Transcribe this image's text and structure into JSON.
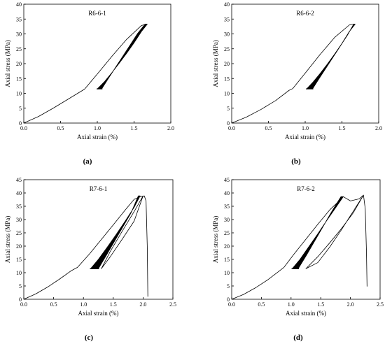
{
  "chart_data": [
    {
      "type": "line",
      "panel_label": "(a)",
      "title": "R6-6-1",
      "xlabel": "Axial strain (%)",
      "ylabel": "Axial stress (MPa)",
      "xlim": [
        0,
        2.0
      ],
      "ylim": [
        0,
        40
      ],
      "xticks": [
        "0.0",
        "0.5",
        "1.0",
        "1.5",
        "2.0"
      ],
      "yticks": [
        "0",
        "5",
        "10",
        "15",
        "20",
        "25",
        "30",
        "35",
        "40"
      ],
      "grid": false,
      "series": [
        {
          "kind": "loading_curve",
          "x": [
            0,
            0.2,
            0.4,
            0.6,
            0.8,
            0.83,
            1.0,
            1.2,
            1.4,
            1.6,
            1.66
          ],
          "y": [
            0,
            2.2,
            5.0,
            8.0,
            11.0,
            11.5,
            16.5,
            22.5,
            28.2,
            32.8,
            33.3
          ]
        },
        {
          "kind": "cyclic_band",
          "x_lower": [
            1.0,
            1.1,
            1.2,
            1.3,
            1.4,
            1.5,
            1.6,
            1.68
          ],
          "y_lower": [
            11.5,
            14.0,
            17.0,
            20.2,
            23.5,
            27.0,
            30.8,
            33.3
          ],
          "x_upper": [
            1.06,
            1.15,
            1.25,
            1.35,
            1.45,
            1.55,
            1.65
          ],
          "y_upper": [
            11.5,
            15.0,
            18.8,
            22.6,
            26.4,
            30.2,
            33.3
          ]
        }
      ]
    },
    {
      "type": "line",
      "panel_label": "(b)",
      "title": "R6-6-2",
      "xlabel": "Axial strain (%)",
      "ylabel": "Axial stress (MPa)",
      "xlim": [
        0,
        2.0
      ],
      "ylim": [
        0,
        40
      ],
      "xticks": [
        "0.0",
        "0.5",
        "1.0",
        "1.5",
        "2.0"
      ],
      "yticks": [
        "0",
        "5",
        "10",
        "15",
        "20",
        "25",
        "30",
        "35",
        "40"
      ],
      "grid": false,
      "series": [
        {
          "kind": "loading_curve",
          "x": [
            0,
            0.2,
            0.4,
            0.6,
            0.78,
            0.83,
            1.0,
            1.2,
            1.4,
            1.6,
            1.66
          ],
          "y": [
            0,
            2.0,
            4.6,
            7.6,
            11.0,
            11.6,
            16.8,
            23.0,
            28.8,
            33.0,
            33.3
          ]
        },
        {
          "kind": "cyclic_band",
          "x_lower": [
            1.02,
            1.1,
            1.2,
            1.3,
            1.4,
            1.5,
            1.6,
            1.68
          ],
          "y_lower": [
            11.5,
            13.6,
            16.6,
            19.8,
            23.2,
            26.8,
            30.8,
            33.3
          ],
          "x_upper": [
            1.1,
            1.18,
            1.28,
            1.38,
            1.48,
            1.58,
            1.66
          ],
          "y_upper": [
            11.5,
            14.6,
            18.4,
            22.2,
            26.0,
            29.8,
            33.3
          ]
        }
      ]
    },
    {
      "type": "line",
      "panel_label": "(c)",
      "title": "R7-6-1",
      "xlabel": "Axial strain (%)",
      "ylabel": "Axial stress (MPa)",
      "xlim": [
        0,
        2.5
      ],
      "ylim": [
        0,
        45
      ],
      "xticks": [
        "0.0",
        "0.5",
        "1.0",
        "1.5",
        "2.0",
        "2.5"
      ],
      "yticks": [
        "0",
        "5",
        "10",
        "15",
        "20",
        "25",
        "30",
        "35",
        "40",
        "45"
      ],
      "grid": false,
      "series": [
        {
          "kind": "loading_curve",
          "x": [
            0,
            0.2,
            0.4,
            0.6,
            0.8,
            0.9,
            1.1,
            1.3,
            1.5,
            1.7,
            1.85,
            1.95,
            2.02,
            2.05,
            2.07,
            2.08
          ],
          "y": [
            0,
            2.0,
            4.6,
            7.6,
            10.8,
            12.0,
            17.0,
            22.5,
            28.0,
            33.6,
            37.6,
            38.6,
            38.9,
            37.0,
            20.0,
            1.0
          ]
        },
        {
          "kind": "cyclic_band",
          "x_lower": [
            1.12,
            1.25,
            1.4,
            1.55,
            1.7,
            1.85,
            1.95
          ],
          "y_lower": [
            11.5,
            15.0,
            19.6,
            24.4,
            29.4,
            34.6,
            38.9
          ],
          "x_upper": [
            1.25,
            1.38,
            1.52,
            1.66,
            1.8,
            1.92
          ],
          "y_upper": [
            11.5,
            16.4,
            21.8,
            27.2,
            32.6,
            38.9
          ]
        },
        {
          "kind": "unload_reload",
          "x": [
            2.0,
            1.85,
            1.65,
            1.45,
            1.3,
            1.45,
            1.65,
            1.85,
            2.0
          ],
          "y": [
            38.9,
            33.0,
            25.6,
            18.0,
            11.5,
            16.0,
            22.6,
            29.4,
            38.9
          ]
        }
      ]
    },
    {
      "type": "line",
      "panel_label": "(d)",
      "title": "R7-6-2",
      "xlabel": "Axial strain  (%)",
      "ylabel": "Axial stress (MPa)",
      "xlim": [
        0,
        2.5
      ],
      "ylim": [
        0,
        45
      ],
      "xticks": [
        "0.0",
        "0.5",
        "1.0",
        "1.5",
        "2.0",
        "2.5"
      ],
      "yticks": [
        "0",
        "5",
        "10",
        "15",
        "20",
        "25",
        "30",
        "35",
        "40",
        "45"
      ],
      "grid": false,
      "series": [
        {
          "kind": "loading_curve",
          "x": [
            0,
            0.2,
            0.4,
            0.6,
            0.8,
            0.88,
            1.05,
            1.25,
            1.45,
            1.65,
            1.8,
            1.88,
            2.0,
            2.15,
            2.22,
            2.25,
            2.27,
            2.28
          ],
          "y": [
            0,
            1.8,
            4.3,
            7.2,
            10.6,
            12.0,
            17.0,
            22.6,
            28.2,
            33.6,
            36.8,
            38.6,
            37.0,
            37.8,
            39.2,
            34.0,
            18.0,
            4.8
          ]
        },
        {
          "kind": "cyclic_band",
          "x_lower": [
            1.02,
            1.15,
            1.3,
            1.45,
            1.6,
            1.75,
            1.88
          ],
          "y_lower": [
            11.5,
            15.0,
            19.8,
            24.6,
            29.6,
            34.4,
            38.6
          ],
          "x_upper": [
            1.12,
            1.26,
            1.4,
            1.54,
            1.68,
            1.84
          ],
          "y_upper": [
            11.5,
            16.6,
            22.0,
            27.4,
            32.8,
            38.6
          ]
        },
        {
          "kind": "unload_reload",
          "x": [
            2.22,
            2.05,
            1.85,
            1.65,
            1.45,
            1.25,
            1.45,
            1.65,
            1.85,
            2.05,
            2.22
          ],
          "y": [
            39.2,
            33.2,
            26.2,
            19.6,
            13.8,
            11.5,
            16.0,
            21.2,
            26.6,
            32.6,
            39.2
          ]
        }
      ]
    }
  ]
}
